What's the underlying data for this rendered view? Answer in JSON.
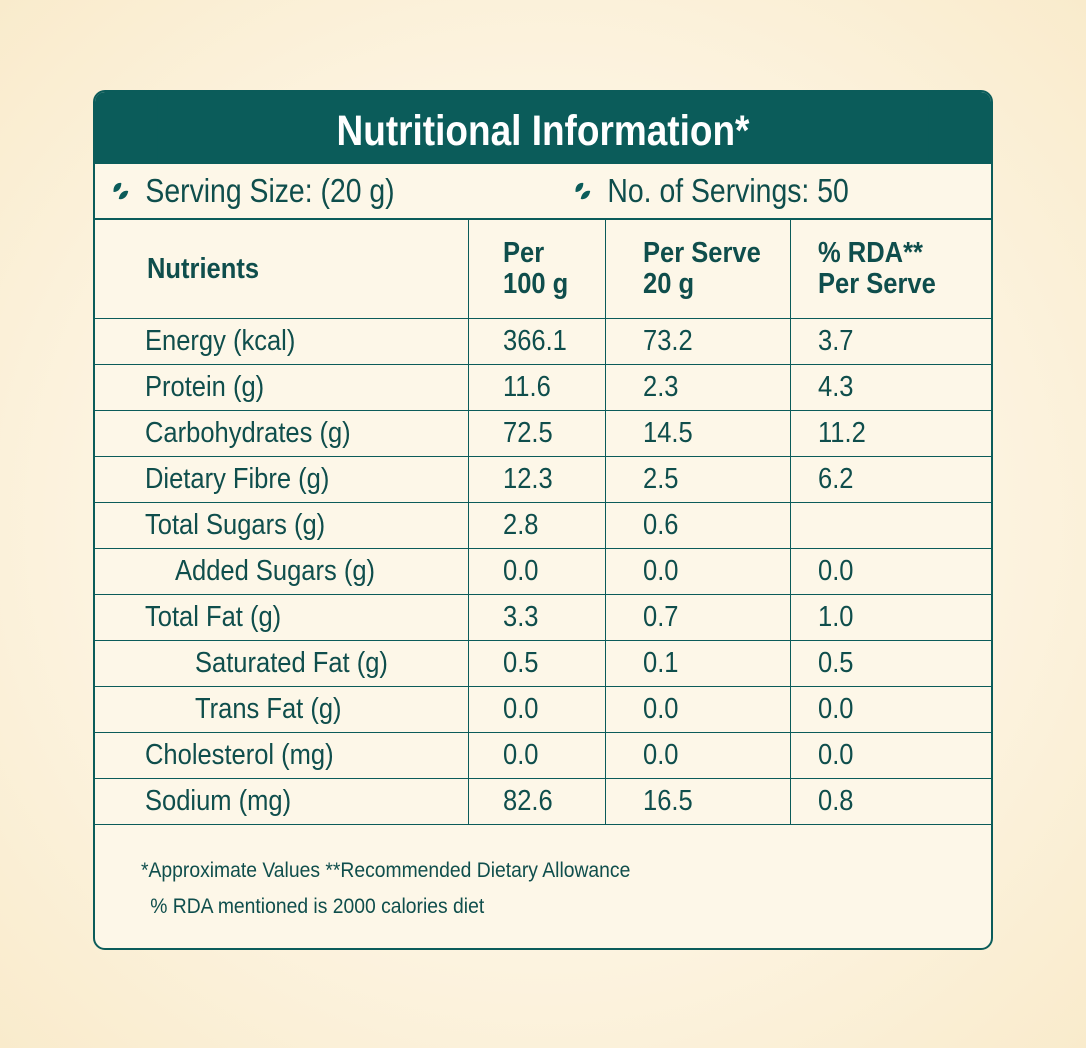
{
  "title": "Nutritional Information*",
  "serving_size": "Serving Size: (20 g)",
  "servings": "No. of Servings: 50",
  "columns": [
    "Nutrients",
    "Per\n100 g",
    "Per Serve\n20 g",
    "% RDA**\nPer Serve"
  ],
  "rows": [
    {
      "name": "Energy (kcal)",
      "indent": 0,
      "per100": "366.1",
      "perServe": "73.2",
      "rda": "3.7"
    },
    {
      "name": "Protein (g)",
      "indent": 0,
      "per100": "11.6",
      "perServe": "2.3",
      "rda": "4.3"
    },
    {
      "name": "Carbohydrates (g)",
      "indent": 0,
      "per100": "72.5",
      "perServe": "14.5",
      "rda": "11.2"
    },
    {
      "name": "Dietary Fibre (g)",
      "indent": 0,
      "per100": "12.3",
      "perServe": "2.5",
      "rda": "6.2"
    },
    {
      "name": "Total Sugars (g)",
      "indent": 0,
      "per100": "2.8",
      "perServe": "0.6",
      "rda": ""
    },
    {
      "name": "Added Sugars (g)",
      "indent": 1,
      "per100": "0.0",
      "perServe": "0.0",
      "rda": "0.0"
    },
    {
      "name": "Total Fat (g)",
      "indent": 0,
      "per100": "3.3",
      "perServe": "0.7",
      "rda": "1.0"
    },
    {
      "name": "Saturated Fat (g)",
      "indent": 2,
      "per100": "0.5",
      "perServe": "0.1",
      "rda": "0.5"
    },
    {
      "name": "Trans Fat (g)",
      "indent": 2,
      "per100": "0.0",
      "perServe": "0.0",
      "rda": "0.0"
    },
    {
      "name": "Cholesterol (mg)",
      "indent": 0,
      "per100": "0.0",
      "perServe": "0.0",
      "rda": "0.0"
    },
    {
      "name": "Sodium (mg)",
      "indent": 0,
      "per100": "82.6",
      "perServe": "16.5",
      "rda": "0.8"
    }
  ],
  "footnote1": "*Approximate Values  **Recommended Dietary Allowance",
  "footnote2": "% RDA mentioned is 2000 calories diet",
  "colors": {
    "primary": "#0b5c5a",
    "background": "#fdf7e8"
  },
  "icons": [
    "leaf-icon"
  ]
}
